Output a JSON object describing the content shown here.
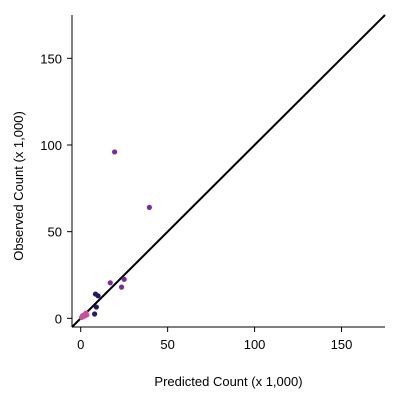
{
  "chart_data": {
    "type": "scatter",
    "title": "",
    "xlabel": "Predicted Count (x 1,000)",
    "ylabel": "Observed Count (x 1,000)",
    "xlim": [
      -5,
      175
    ],
    "ylim": [
      -5,
      175
    ],
    "x_ticks": [
      0,
      50,
      100,
      150
    ],
    "y_ticks": [
      0,
      50,
      100,
      150
    ],
    "x_tick_labels": [
      "0",
      "50",
      "100",
      "150"
    ],
    "y_tick_labels": [
      "0",
      "50",
      "100",
      "150"
    ],
    "grid": false,
    "legend": "none",
    "reference_line": {
      "type": "identity",
      "color": "#000000"
    },
    "colors": {
      "dark_navy": "#1f1a6b",
      "purple": "#7a2a9a",
      "magenta": "#cc4f9a"
    },
    "points": [
      {
        "x": 19.5,
        "y": 96.0,
        "color": "#7a2a9a"
      },
      {
        "x": 39.5,
        "y": 64.0,
        "color": "#7a2a9a"
      },
      {
        "x": 25.0,
        "y": 22.5,
        "color": "#7a2a9a"
      },
      {
        "x": 17.0,
        "y": 20.5,
        "color": "#7a2a9a"
      },
      {
        "x": 23.5,
        "y": 18.0,
        "color": "#7a2a9a"
      },
      {
        "x": 8.5,
        "y": 14.0,
        "color": "#1f1a6b"
      },
      {
        "x": 10.0,
        "y": 13.0,
        "color": "#1f1a6b"
      },
      {
        "x": 9.0,
        "y": 6.5,
        "color": "#1f1a6b"
      },
      {
        "x": 8.0,
        "y": 2.5,
        "color": "#1f1a6b"
      },
      {
        "x": 3.0,
        "y": 3.0,
        "color": "#cc4f9a"
      },
      {
        "x": 2.0,
        "y": 2.0,
        "color": "#cc4f9a"
      },
      {
        "x": 2.5,
        "y": 1.5,
        "color": "#cc4f9a"
      },
      {
        "x": 1.5,
        "y": 1.0,
        "color": "#cc4f9a"
      },
      {
        "x": 1.0,
        "y": 1.5,
        "color": "#cc4f9a"
      },
      {
        "x": 0.5,
        "y": 0.5,
        "color": "#cc4f9a"
      },
      {
        "x": 3.5,
        "y": 2.0,
        "color": "#cc4f9a"
      }
    ]
  }
}
